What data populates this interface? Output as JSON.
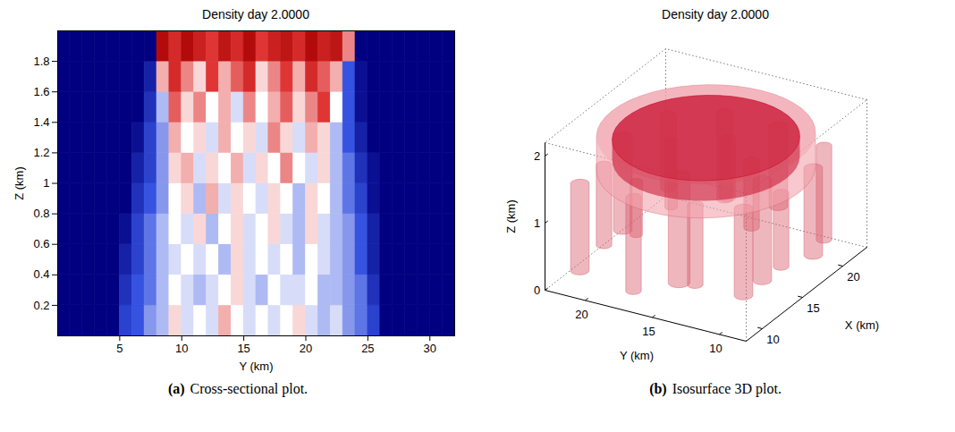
{
  "chart_data": [
    {
      "type": "heatmap",
      "title": "Density day 2.0000",
      "label": "(a)",
      "caption": "Cross-sectional plot.",
      "x_label": "Y (km)",
      "y_label": "Z (km)",
      "xlim": [
        0,
        32
      ],
      "ylim": [
        0,
        2
      ],
      "xticks": [
        5,
        10,
        15,
        20,
        25,
        30
      ],
      "yticks": [
        0.2,
        0.4,
        0.6,
        0.8,
        1,
        1.2,
        1.4,
        1.6,
        1.8
      ],
      "clim": [
        -1,
        1
      ],
      "x": [
        0.5,
        1.5,
        2.5,
        3.5,
        4.5,
        5.5,
        6.5,
        7.5,
        8.5,
        9.5,
        10.5,
        11.5,
        12.5,
        13.5,
        14.5,
        15.5,
        16.5,
        17.5,
        18.5,
        19.5,
        20.5,
        21.5,
        22.5,
        23.5,
        24.5,
        25.5,
        26.5,
        27.5,
        28.5,
        29.5,
        30.5,
        31.5
      ],
      "y": [
        0.1,
        0.3,
        0.5,
        0.7,
        0.9,
        1.1,
        1.3,
        1.5,
        1.7,
        1.9
      ],
      "values": [
        [
          -1,
          -1,
          -1,
          -1,
          -1,
          -0.6,
          -0.5,
          -0.3,
          -0.2,
          0.1,
          -0.1,
          0,
          -0.1,
          0.2,
          0,
          -0.1,
          0,
          -0.1,
          0,
          0.1,
          -0.1,
          -0.2,
          -0.1,
          -0.3,
          -0.4,
          -0.6,
          -1,
          -1,
          -1,
          -1,
          -1,
          -1
        ],
        [
          -1,
          -1,
          -1,
          -1,
          -1,
          -0.7,
          -0.5,
          -0.4,
          -0.2,
          0,
          -0.1,
          -0.2,
          -0.1,
          0,
          0.1,
          -0.1,
          -0.2,
          0,
          -0.1,
          -0.1,
          0,
          -0.2,
          -0.2,
          -0.3,
          -0.4,
          -0.7,
          -1,
          -1,
          -1,
          -1,
          -1,
          -1
        ],
        [
          -1,
          -1,
          -1,
          -1,
          -1,
          -0.8,
          -0.6,
          -0.4,
          -0.2,
          -0.1,
          0,
          -0.1,
          0,
          -0.2,
          0.1,
          -0.1,
          0,
          -0.1,
          0,
          -0.2,
          0,
          -0.1,
          -0.2,
          -0.3,
          -0.5,
          -0.8,
          -1,
          -1,
          -1,
          -1,
          -1,
          -1
        ],
        [
          -1,
          -1,
          -1,
          -1,
          -1,
          -0.9,
          -0.6,
          -0.4,
          -0.2,
          0,
          -0.1,
          0.1,
          -0.2,
          0,
          0.1,
          -0.1,
          0,
          0.1,
          -0.1,
          -0.2,
          0.1,
          -0.1,
          -0.2,
          -0.3,
          -0.5,
          -0.8,
          -1,
          -1,
          -1,
          -1,
          -1,
          -1
        ],
        [
          -1,
          -1,
          -1,
          -1,
          -1,
          -1,
          -0.7,
          -0.5,
          -0.3,
          0,
          0.1,
          -0.2,
          0.2,
          -0.1,
          0.1,
          0,
          -0.1,
          0.1,
          0,
          -0.2,
          0.1,
          0,
          -0.2,
          -0.4,
          -0.6,
          -0.9,
          -1,
          -1,
          -1,
          -1,
          -1,
          -1
        ],
        [
          -1,
          -1,
          -1,
          -1,
          -1,
          -1,
          -0.8,
          -0.6,
          -0.3,
          0.1,
          0.2,
          -0.1,
          0.1,
          0,
          0.2,
          -0.1,
          0.1,
          0,
          0.3,
          0,
          -0.1,
          0.1,
          -0.2,
          -0.4,
          -0.7,
          -0.9,
          -1,
          -1,
          -1,
          -1,
          -1,
          -1
        ],
        [
          -1,
          -1,
          -1,
          -1,
          -1,
          -1,
          -0.9,
          -0.6,
          -0.3,
          0.2,
          0,
          0.1,
          -0.1,
          0.2,
          0,
          0.1,
          -0.1,
          0.3,
          0.1,
          -0.1,
          0.2,
          0.1,
          -0.2,
          -0.5,
          -0.8,
          -1,
          -1,
          -1,
          -1,
          -1,
          -1,
          -1
        ],
        [
          -1,
          -1,
          -1,
          -1,
          -1,
          -1,
          -1,
          -0.7,
          -0.2,
          0.4,
          0.1,
          0.3,
          0,
          0.2,
          -0.1,
          0.3,
          0,
          0.2,
          0.4,
          0.1,
          0.3,
          0.5,
          0,
          -0.5,
          -0.9,
          -1,
          -1,
          -1,
          -1,
          -1,
          -1,
          -1
        ],
        [
          -1,
          -1,
          -1,
          -1,
          -1,
          -1,
          -1,
          -0.8,
          0.2,
          0.6,
          0.3,
          0.1,
          0.5,
          0.2,
          0.4,
          0.6,
          0.1,
          0.3,
          0.5,
          0.2,
          0.6,
          0.4,
          0.2,
          -0.5,
          -0.9,
          -1,
          -1,
          -1,
          -1,
          -1,
          -1,
          -1
        ],
        [
          -1,
          -1,
          -1,
          -1,
          -1,
          -1,
          -1,
          -1,
          0.9,
          0.6,
          0.9,
          0.7,
          0.5,
          0.8,
          0.6,
          0.9,
          0.5,
          0.7,
          0.8,
          0.6,
          0.9,
          0.7,
          0.8,
          0.3,
          -1,
          -1,
          -1,
          -1,
          -1,
          -1,
          -1,
          -1
        ]
      ]
    },
    {
      "type": "isosurface3d",
      "title": "Density day 2.0000",
      "label": "(b)",
      "caption": "Isosurface 3D plot.",
      "x_label": "X (km)",
      "y_label": "Y (km)",
      "z_label": "Z (km)",
      "xlim": [
        8,
        23
      ],
      "ylim": [
        8,
        23
      ],
      "zlim": [
        0,
        2.2
      ],
      "xticks": [
        10,
        15,
        20
      ],
      "yticks": [
        10,
        15,
        20
      ],
      "zticks": [
        0,
        1,
        2
      ],
      "cap": {
        "x": 15.5,
        "y": 15.5,
        "radius": 7,
        "z_bottom": 1.5,
        "z_top": 2.0,
        "color": "#f2a3ad"
      },
      "core": {
        "x": 15.5,
        "y": 15.5,
        "radius": 6,
        "z_bottom": 1.65,
        "z_top": 1.95,
        "color": "#c8102e"
      },
      "plumes": {
        "color": "#d9606f",
        "items": [
          {
            "x": 9,
            "y": 21,
            "z_bottom": 0.3,
            "z_top": 1.6,
            "radius": 0.6
          },
          {
            "x": 9,
            "y": 17,
            "z_bottom": 0.2,
            "z_top": 1.6,
            "radius": 0.5
          },
          {
            "x": 10,
            "y": 13,
            "z_bottom": 0.4,
            "z_top": 1.6,
            "radius": 0.5
          },
          {
            "x": 11,
            "y": 10,
            "z_bottom": 0.3,
            "z_top": 1.6,
            "radius": 0.6
          },
          {
            "x": 14,
            "y": 9,
            "z_bottom": 0.5,
            "z_top": 1.6,
            "radius": 0.5
          },
          {
            "x": 18,
            "y": 9,
            "z_bottom": 0.3,
            "z_top": 1.6,
            "radius": 0.6
          },
          {
            "x": 21,
            "y": 10,
            "z_bottom": 0.2,
            "z_top": 1.6,
            "radius": 0.5
          },
          {
            "x": 22,
            "y": 14,
            "z_bottom": 0.4,
            "z_top": 1.6,
            "radius": 0.6
          },
          {
            "x": 22,
            "y": 18,
            "z_bottom": 0.3,
            "z_top": 1.6,
            "radius": 0.5
          },
          {
            "x": 20,
            "y": 21,
            "z_bottom": 0.5,
            "z_top": 1.6,
            "radius": 0.5
          },
          {
            "x": 16,
            "y": 22,
            "z_bottom": 0.2,
            "z_top": 1.6,
            "radius": 0.6
          },
          {
            "x": 12,
            "y": 21,
            "z_bottom": 0.4,
            "z_top": 1.6,
            "radius": 0.5
          },
          {
            "x": 13,
            "y": 16,
            "z_bottom": 0,
            "z_top": 1.6,
            "radius": 0.7
          },
          {
            "x": 17,
            "y": 13,
            "z_bottom": 0.6,
            "z_top": 1.6,
            "radius": 0.5
          },
          {
            "x": 15,
            "y": 11,
            "z_bottom": 0.1,
            "z_top": 1.6,
            "radius": 0.6
          },
          {
            "x": 19,
            "y": 16,
            "z_bottom": 0.7,
            "z_top": 1.6,
            "radius": 0.5
          },
          {
            "x": 11,
            "y": 18,
            "z_bottom": 0.8,
            "z_top": 1.6,
            "radius": 0.4
          },
          {
            "x": 17,
            "y": 19,
            "z_bottom": 0.6,
            "z_top": 1.6,
            "radius": 0.4
          }
        ]
      }
    }
  ]
}
